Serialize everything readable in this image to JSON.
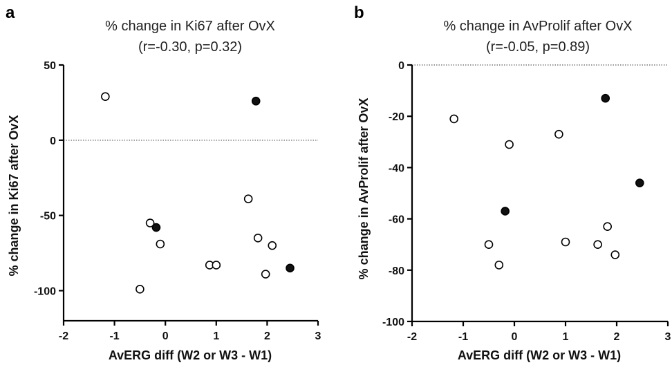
{
  "chart_data": [
    {
      "panel": "a",
      "type": "scatter",
      "title": "% change in Ki67 after OvX",
      "subtitle": "(r=-0.30, p=0.32)",
      "xlabel": "AvERG diff (W2 or W3 - W1)",
      "ylabel": "% change in Ki67 after OvX",
      "xlim": [
        -2,
        3
      ],
      "ylim": [
        -120,
        50
      ],
      "xticks": [
        -2,
        -1,
        0,
        1,
        2,
        3
      ],
      "yticks": [
        -100,
        -50,
        0,
        50
      ],
      "reference_line_y": 0,
      "points": [
        {
          "x": -1.18,
          "y": 29,
          "filled": false
        },
        {
          "x": 1.78,
          "y": 26,
          "filled": true
        },
        {
          "x": -0.3,
          "y": -55,
          "filled": false
        },
        {
          "x": -0.18,
          "y": -58,
          "filled": true
        },
        {
          "x": -0.1,
          "y": -69,
          "filled": false
        },
        {
          "x": 1.63,
          "y": -39,
          "filled": false
        },
        {
          "x": 1.82,
          "y": -65,
          "filled": false
        },
        {
          "x": 2.1,
          "y": -70,
          "filled": false
        },
        {
          "x": 0.87,
          "y": -83,
          "filled": false
        },
        {
          "x": 1.0,
          "y": -83,
          "filled": false
        },
        {
          "x": 2.45,
          "y": -85,
          "filled": true
        },
        {
          "x": 1.97,
          "y": -89,
          "filled": false
        },
        {
          "x": -0.5,
          "y": -99,
          "filled": false
        }
      ]
    },
    {
      "panel": "b",
      "type": "scatter",
      "title": "% change in AvProlif after OvX",
      "subtitle": "(r=-0.05, p=0.89)",
      "xlabel": "AvERG diff (W2 or W3 - W1)",
      "ylabel": "% change in AvProlif after OvX",
      "xlim": [
        -2,
        3
      ],
      "ylim": [
        -100,
        0
      ],
      "xticks": [
        -2,
        -1,
        0,
        1,
        2,
        3
      ],
      "yticks": [
        -100,
        -80,
        -60,
        -40,
        -20,
        0
      ],
      "reference_line_y": 0,
      "points": [
        {
          "x": -1.18,
          "y": -21,
          "filled": false
        },
        {
          "x": 1.78,
          "y": -13,
          "filled": true
        },
        {
          "x": -0.1,
          "y": -31,
          "filled": false
        },
        {
          "x": 0.87,
          "y": -27,
          "filled": false
        },
        {
          "x": 2.45,
          "y": -46,
          "filled": true
        },
        {
          "x": -0.18,
          "y": -57,
          "filled": true
        },
        {
          "x": 1.82,
          "y": -63,
          "filled": false
        },
        {
          "x": 1.0,
          "y": -69,
          "filled": false
        },
        {
          "x": 1.63,
          "y": -70,
          "filled": false
        },
        {
          "x": -0.5,
          "y": -70,
          "filled": false
        },
        {
          "x": 1.97,
          "y": -74,
          "filled": false
        },
        {
          "x": -0.3,
          "y": -78,
          "filled": false
        }
      ]
    }
  ]
}
